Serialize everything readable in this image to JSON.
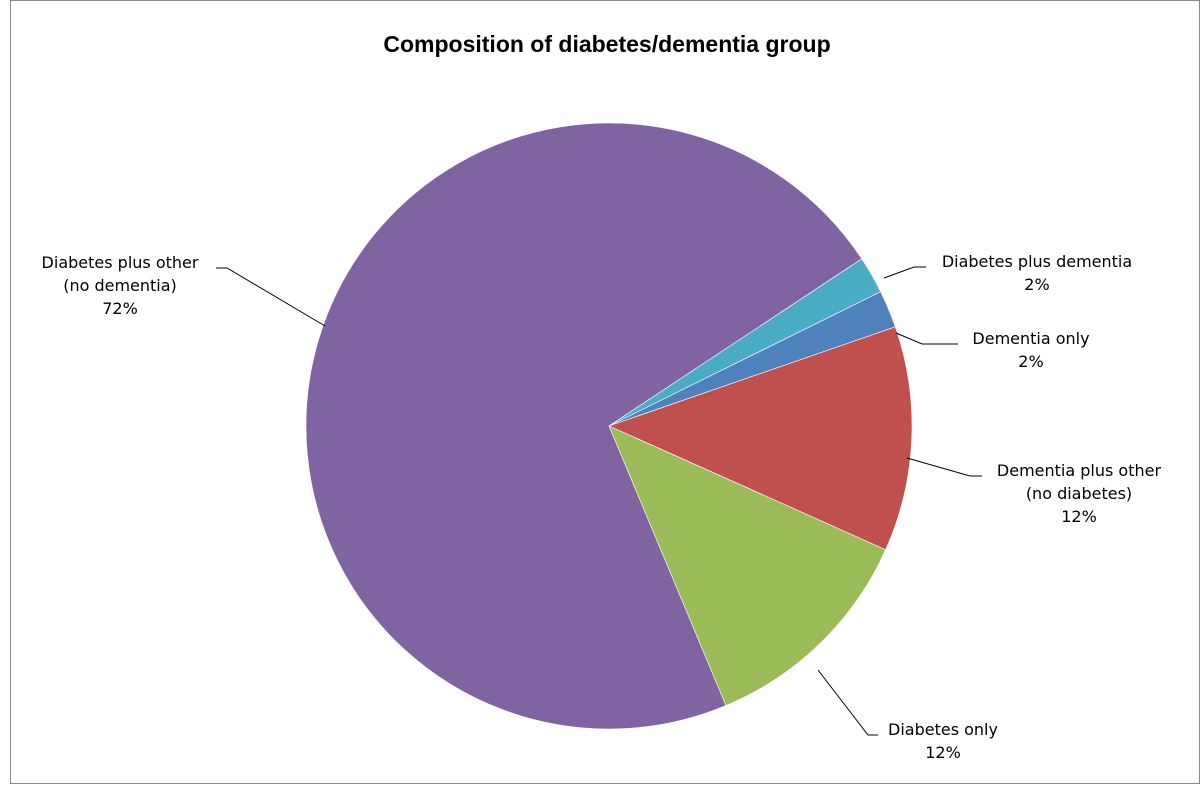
{
  "chart_data": {
    "type": "pie",
    "title": "Composition of diabetes/dementia group",
    "start_angle_deg": 56.5,
    "direction": "clockwise",
    "slices": [
      {
        "name": "Diabetes plus dementia",
        "label_lines": [
          "Diabetes plus dementia"
        ],
        "value": 2,
        "value_label": "2%",
        "color": "#4BACC6",
        "key": "diabetes-plus-dementia"
      },
      {
        "name": "Dementia only",
        "label_lines": [
          "Dementia only"
        ],
        "value": 2,
        "value_label": "2%",
        "color": "#4F81BD",
        "key": "dementia-only"
      },
      {
        "name": "Dementia plus other (no diabetes)",
        "label_lines": [
          "Dementia plus other",
          "(no diabetes)"
        ],
        "value": 12,
        "value_label": "12%",
        "color": "#C0504D",
        "key": "dementia-plus-other"
      },
      {
        "name": "Diabetes only",
        "label_lines": [
          "Diabetes only"
        ],
        "value": 12,
        "value_label": "12%",
        "color": "#9BBB59",
        "key": "diabetes-only"
      },
      {
        "name": "Diabetes plus other (no dementia)",
        "label_lines": [
          "Diabetes plus other",
          "(no dementia)"
        ],
        "value": 72,
        "value_label": "72%",
        "color": "#8064A2",
        "key": "diabetes-plus-other"
      }
    ]
  }
}
